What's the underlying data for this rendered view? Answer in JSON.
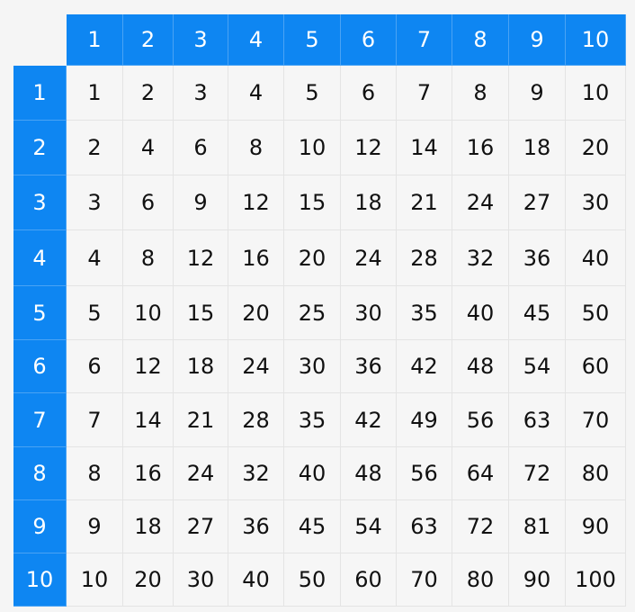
{
  "colors": {
    "header_bg": "#0e86f2",
    "header_text": "#ffffff",
    "cell_bg": "#f6f6f6",
    "cell_text": "#111111"
  },
  "column_headers": [
    "1",
    "2",
    "3",
    "4",
    "5",
    "6",
    "7",
    "8",
    "9",
    "10"
  ],
  "rows": [
    {
      "header": "1",
      "values": [
        "1",
        "2",
        "3",
        "4",
        "5",
        "6",
        "7",
        "8",
        "9",
        "10"
      ]
    },
    {
      "header": "2",
      "values": [
        "2",
        "4",
        "6",
        "8",
        "10",
        "12",
        "14",
        "16",
        "18",
        "20"
      ]
    },
    {
      "header": "3",
      "values": [
        "3",
        "6",
        "9",
        "12",
        "15",
        "18",
        "21",
        "24",
        "27",
        "30"
      ]
    },
    {
      "header": "4",
      "values": [
        "4",
        "8",
        "12",
        "16",
        "20",
        "24",
        "28",
        "32",
        "36",
        "40"
      ]
    },
    {
      "header": "5",
      "values": [
        "5",
        "10",
        "15",
        "20",
        "25",
        "30",
        "35",
        "40",
        "45",
        "50"
      ]
    },
    {
      "header": "6",
      "values": [
        "6",
        "12",
        "18",
        "24",
        "30",
        "36",
        "42",
        "48",
        "54",
        "60"
      ]
    },
    {
      "header": "7",
      "values": [
        "7",
        "14",
        "21",
        "28",
        "35",
        "42",
        "49",
        "56",
        "63",
        "70"
      ]
    },
    {
      "header": "8",
      "values": [
        "8",
        "16",
        "24",
        "32",
        "40",
        "48",
        "56",
        "64",
        "72",
        "80"
      ]
    },
    {
      "header": "9",
      "values": [
        "9",
        "18",
        "27",
        "36",
        "45",
        "54",
        "63",
        "72",
        "81",
        "90"
      ]
    },
    {
      "header": "10",
      "values": [
        "10",
        "20",
        "30",
        "40",
        "50",
        "60",
        "70",
        "80",
        "90",
        "100"
      ]
    }
  ]
}
